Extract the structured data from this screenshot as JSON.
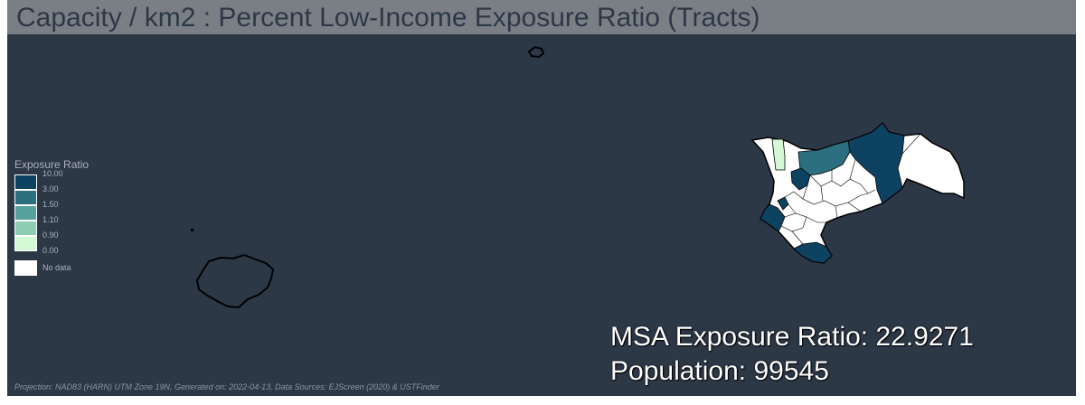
{
  "title": "Capacity / km2 : Percent Low-Income Exposure Ratio (Tracts)",
  "legend": {
    "title": "Exposure Ratio",
    "classes": [
      {
        "upper": "10.00",
        "lower": "3.00",
        "color": "#0e4261"
      },
      {
        "upper": "3.00",
        "lower": "1.50",
        "color": "#2c6f80"
      },
      {
        "upper": "1.50",
        "lower": "1.10",
        "color": "#57a09b"
      },
      {
        "upper": "1.10",
        "lower": "0.90",
        "color": "#8dcdb4"
      },
      {
        "upper": "0.90",
        "lower": "0.00",
        "color": "#d4f7d4"
      }
    ],
    "no_data_label": "No data",
    "no_data_color": "#ffffff"
  },
  "stats": {
    "msa_exposure_ratio": "MSA Exposure Ratio: 22.9271",
    "population": "Population: 99545"
  },
  "footer": "Projection: NAD83 (HARN) UTM Zone 19N, Generated on: 2022-04-13, Data Sources: EJScreen (2020) & USTFinder",
  "colors": {
    "background": "#2d3847",
    "title_bar": "#7a7f86",
    "title_text": "#2d3847",
    "boundary": "#000000"
  }
}
